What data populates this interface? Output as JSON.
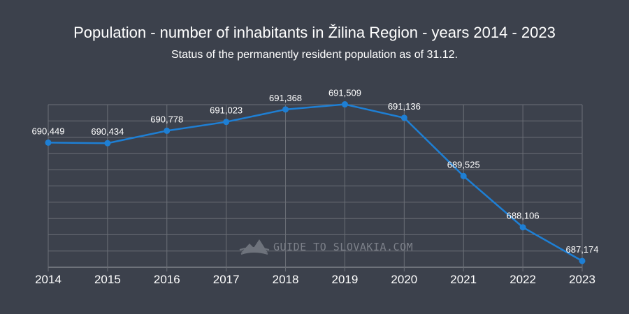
{
  "chart_data": {
    "type": "line",
    "title": "Population - number of inhabitants in Žilina Region - years 2014 - 2023",
    "subtitle": "Status of the permanently resident population as of 31.12.",
    "categories": [
      "2014",
      "2015",
      "2016",
      "2017",
      "2018",
      "2019",
      "2020",
      "2021",
      "2022",
      "2023"
    ],
    "series": [
      {
        "name": "Population",
        "values": [
          690449,
          690434,
          690778,
          691023,
          691368,
          691509,
          691136,
          689525,
          688106,
          687174
        ],
        "labels": [
          "690,449",
          "690,434",
          "690,778",
          "691,023",
          "691,368",
          "691,509",
          "691,136",
          "689,525",
          "688,106",
          "687,174"
        ],
        "color": "#1e7fd4"
      }
    ],
    "ylim": [
      687000,
      691500
    ],
    "grid": true,
    "xlabel": "",
    "ylabel": "",
    "watermark": "GUIDE TO SLOVAKIA.COM"
  },
  "colors": {
    "background": "#3c414c",
    "line": "#1e7fd4",
    "grid": "#6b6f77",
    "text": "#ffffff",
    "watermark": "#7c8089"
  }
}
